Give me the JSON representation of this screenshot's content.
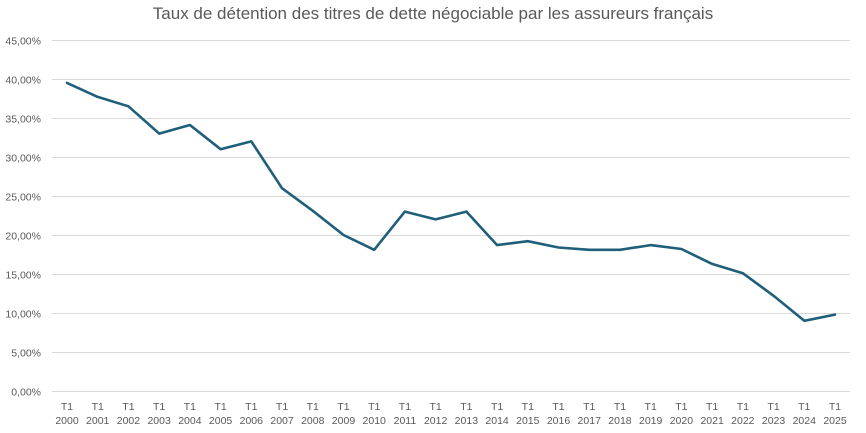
{
  "chart_data": {
    "type": "line",
    "title": "Taux de détention des titres de dette négociable par les assureurs français",
    "xlabel": "",
    "ylabel": "",
    "ylim": [
      0,
      45
    ],
    "ytick_step": 5,
    "ytick_labels": [
      "0,00%",
      "5,00%",
      "10,00%",
      "15,00%",
      "20,00%",
      "25,00%",
      "30,00%",
      "35,00%",
      "40,00%",
      "45,00%"
    ],
    "grid": true,
    "legend": "none",
    "categories": [
      [
        "T1",
        "2000"
      ],
      [
        "T1",
        "2001"
      ],
      [
        "T1",
        "2002"
      ],
      [
        "T1",
        "2003"
      ],
      [
        "T1",
        "2004"
      ],
      [
        "T1",
        "2005"
      ],
      [
        "T1",
        "2006"
      ],
      [
        "T1",
        "2007"
      ],
      [
        "T1",
        "2008"
      ],
      [
        "T1",
        "2009"
      ],
      [
        "T1",
        "2010"
      ],
      [
        "T1",
        "2011"
      ],
      [
        "T1",
        "2012"
      ],
      [
        "T1",
        "2013"
      ],
      [
        "T1",
        "2014"
      ],
      [
        "T1",
        "2015"
      ],
      [
        "T1",
        "2016"
      ],
      [
        "T1",
        "2017"
      ],
      [
        "T1",
        "2018"
      ],
      [
        "T1",
        "2019"
      ],
      [
        "T1",
        "2020"
      ],
      [
        "T1",
        "2021"
      ],
      [
        "T1",
        "2022"
      ],
      [
        "T1",
        "2023"
      ],
      [
        "T1",
        "2024"
      ],
      [
        "T1",
        "2025"
      ]
    ],
    "series": [
      {
        "name": "Taux de détention",
        "color": "#1f5f7a",
        "values": [
          39.5,
          37.7,
          36.5,
          33.0,
          34.1,
          31.0,
          32.0,
          26.0,
          23.1,
          20.0,
          18.1,
          23.0,
          22.0,
          23.0,
          18.7,
          19.2,
          18.4,
          18.1,
          18.1,
          18.7,
          18.2,
          16.3,
          15.1,
          12.2,
          9.0,
          9.8
        ]
      }
    ]
  }
}
